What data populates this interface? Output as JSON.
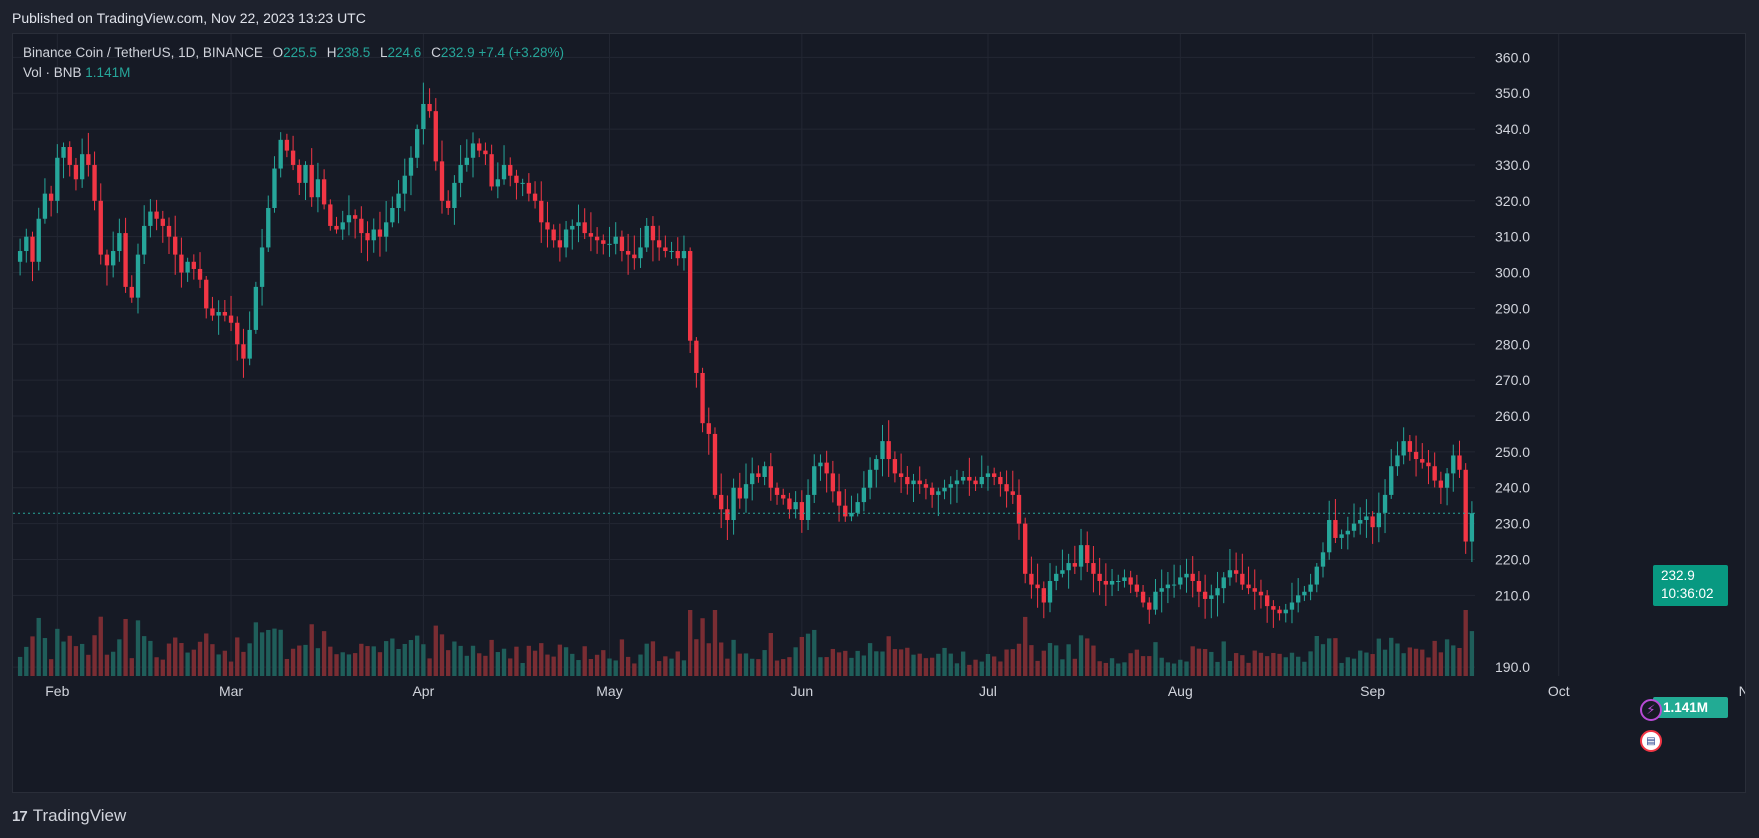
{
  "header": {
    "published": "Published on TradingView.com, Nov 22, 2023 13:23 UTC"
  },
  "legend": {
    "symbol": "Binance Coin / TetherUS, 1D, BINANCE",
    "open_key": "O",
    "open": "225.5",
    "high_key": "H",
    "high": "238.5",
    "low_key": "L",
    "low": "224.6",
    "close_key": "C",
    "close": "232.9",
    "change": "+7.4 (+3.28%)",
    "vol_label": "Vol · BNB",
    "vol_value": "1.141M"
  },
  "price_tag": {
    "price": "232.9",
    "countdown": "10:36:02"
  },
  "vol_tag": "1.141M",
  "footer": {
    "brand": "TradingView",
    "mark": "17"
  },
  "colors": {
    "up": "#26a69a",
    "down": "#f23645",
    "up_vol": "#1f5e5a",
    "down_vol": "#7a2d33",
    "grid": "#232733"
  },
  "icons": [
    "bolt-icon",
    "us-flag-icon",
    "tradingview-logo-icon"
  ],
  "chart_data": {
    "type": "candlestick",
    "title": "Binance Coin / TetherUS, 1D, BINANCE",
    "ylim": [
      185,
      364
    ],
    "yticks": [
      360,
      350,
      340,
      330,
      320,
      310,
      300,
      290,
      280,
      270,
      260,
      250,
      240,
      230,
      220,
      210,
      190
    ],
    "hidden_ytick_note": "",
    "xticks": [
      {
        "label": "Feb",
        "day": 6
      },
      {
        "label": "Mar",
        "day": 34
      },
      {
        "label": "Apr",
        "day": 65
      },
      {
        "label": "May",
        "day": 95
      },
      {
        "label": "Jun",
        "day": 126
      },
      {
        "label": "Jul",
        "day": 156
      },
      {
        "label": "Aug",
        "day": 187
      },
      {
        "label": "Sep",
        "day": 218
      },
      {
        "label": "Oct",
        "day": 248
      },
      {
        "label": "Nov",
        "day": 279
      }
    ],
    "last_price": 232.9,
    "x_start": "2023-01-27",
    "x_end": "2023-11-22",
    "closes_note": "daily close path, approximate",
    "closes": [
      306,
      310,
      303,
      315,
      322,
      320,
      332,
      335,
      330,
      326,
      333,
      330,
      320,
      305,
      302,
      306,
      311,
      296,
      293,
      305,
      313,
      317,
      315,
      313,
      310,
      305,
      300,
      303,
      301,
      298,
      290,
      288,
      289,
      288,
      286,
      280,
      276,
      284,
      296,
      307,
      318,
      329,
      337,
      334,
      330,
      325,
      330,
      321,
      326,
      319,
      313,
      312,
      314,
      316,
      315,
      311,
      309,
      312,
      310,
      314,
      318,
      322,
      327,
      332,
      340,
      347,
      345,
      331,
      320,
      318,
      325,
      330,
      332,
      336,
      334,
      333,
      324,
      326,
      330,
      327,
      325,
      325,
      322,
      320,
      314,
      312,
      309,
      307,
      312,
      313,
      314,
      311,
      310,
      309,
      308,
      308,
      310,
      306,
      305,
      304,
      307,
      313,
      309,
      307,
      306,
      306,
      304,
      306,
      281,
      272,
      258,
      255,
      238,
      234,
      231,
      240,
      237,
      241,
      244,
      243,
      246,
      240,
      238,
      237,
      234,
      236,
      231,
      238,
      246,
      247,
      244,
      239,
      235,
      232,
      233,
      236,
      240,
      245,
      248,
      253,
      248,
      244,
      243,
      241,
      242,
      241,
      240,
      238,
      239,
      240,
      241,
      242,
      243,
      242,
      241,
      243,
      244,
      243,
      241,
      239,
      238,
      230,
      216,
      213,
      212,
      208,
      214,
      216,
      217,
      219,
      218,
      224,
      219,
      216,
      214,
      213,
      214,
      214,
      215,
      213,
      211,
      208,
      206,
      211,
      212,
      213,
      213,
      215,
      216,
      214,
      211,
      209,
      210,
      212,
      215,
      217,
      216,
      213,
      212,
      211,
      210,
      207,
      206,
      205,
      206,
      208,
      210,
      211,
      213,
      218,
      222,
      231,
      226,
      227,
      228,
      230,
      231,
      232,
      229,
      233,
      238,
      246,
      249,
      253,
      250,
      248,
      247,
      246,
      242,
      240,
      244,
      249,
      245,
      225,
      232.9
    ]
  }
}
